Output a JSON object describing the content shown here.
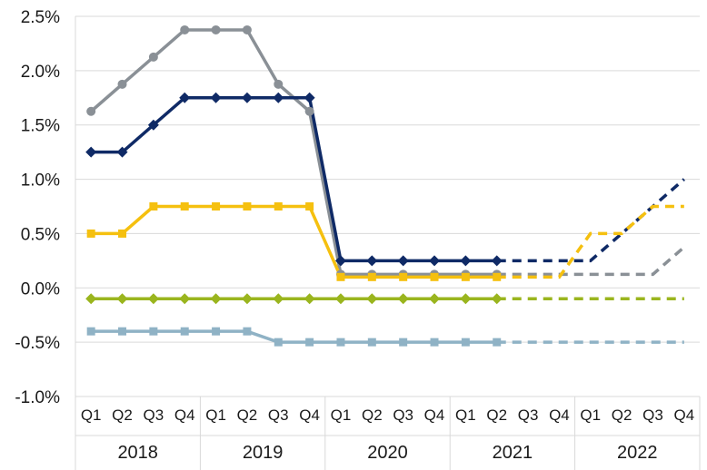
{
  "chart_data": {
    "type": "line",
    "title": "",
    "xlabel": "",
    "ylabel": "",
    "ylim": [
      -1.0,
      2.5
    ],
    "yticks": [
      "-1.0%",
      "-0.5%",
      "0.0%",
      "0.5%",
      "1.0%",
      "1.5%",
      "2.0%",
      "2.5%"
    ],
    "ytick_values": [
      -1.0,
      -0.5,
      0.0,
      0.5,
      1.0,
      1.5,
      2.0,
      2.5
    ],
    "grid": "horizontal",
    "legend": "none",
    "quarters": [
      "Q1",
      "Q2",
      "Q3",
      "Q4",
      "Q1",
      "Q2",
      "Q3",
      "Q4",
      "Q1",
      "Q2",
      "Q3",
      "Q4",
      "Q1",
      "Q2",
      "Q3",
      "Q4",
      "Q1",
      "Q2",
      "Q3",
      "Q4"
    ],
    "years": [
      "2018",
      "2019",
      "2020",
      "2021",
      "2022"
    ],
    "series": [
      {
        "color": "#8a9096",
        "marker": "circle",
        "values": [
          1.625,
          1.875,
          2.125,
          2.375,
          2.375,
          2.375,
          1.875,
          1.625,
          0.125,
          0.125,
          0.125,
          0.125,
          0.125,
          0.125,
          0.125,
          0.125,
          0.125,
          0.125,
          0.125,
          0.375
        ],
        "solid_through": 13
      },
      {
        "color": "#0f2a66",
        "marker": "diamond",
        "values": [
          1.25,
          1.25,
          1.5,
          1.75,
          1.75,
          1.75,
          1.75,
          1.75,
          0.25,
          0.25,
          0.25,
          0.25,
          0.25,
          0.25,
          0.25,
          0.25,
          0.25,
          0.5,
          0.75,
          1.0
        ],
        "solid_through": 13
      },
      {
        "color": "#f5c00f",
        "marker": "square",
        "values": [
          0.5,
          0.5,
          0.75,
          0.75,
          0.75,
          0.75,
          0.75,
          0.75,
          0.1,
          0.1,
          0.1,
          0.1,
          0.1,
          0.1,
          0.1,
          0.1,
          0.5,
          0.5,
          0.75,
          0.75
        ],
        "solid_through": 13
      },
      {
        "color": "#9ab51e",
        "marker": "diamond",
        "values": [
          -0.1,
          -0.1,
          -0.1,
          -0.1,
          -0.1,
          -0.1,
          -0.1,
          -0.1,
          -0.1,
          -0.1,
          -0.1,
          -0.1,
          -0.1,
          -0.1,
          -0.1,
          -0.1,
          -0.1,
          -0.1,
          -0.1,
          -0.1
        ],
        "solid_through": 13
      },
      {
        "color": "#8fb2c5",
        "marker": "square",
        "values": [
          -0.4,
          -0.4,
          -0.4,
          -0.4,
          -0.4,
          -0.4,
          -0.5,
          -0.5,
          -0.5,
          -0.5,
          -0.5,
          -0.5,
          -0.5,
          -0.5,
          -0.5,
          -0.5,
          -0.5,
          -0.5,
          -0.5,
          -0.5
        ],
        "solid_through": 13
      }
    ]
  }
}
